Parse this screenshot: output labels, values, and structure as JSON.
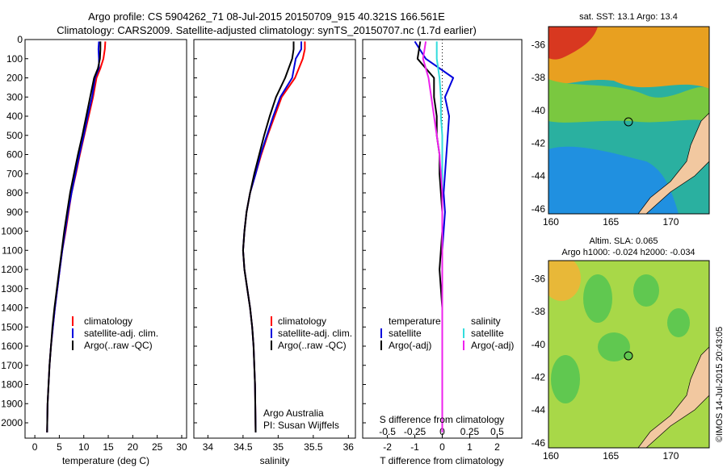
{
  "header": {
    "title_line1": "Argo profile: CS 5904262_71 08-Jul-2015 20150709_915 40.321S 166.561E",
    "title_line2": "Climatology: CARS2009. Satellite-adjusted climatology: synTS_20150707.nc (1.7d earlier)"
  },
  "colors": {
    "climatology": "#ff0000",
    "satellite": "#0000dd",
    "argo": "#000000",
    "salinity_satellite": "#33dddd",
    "salinity_argo": "#ee22ee",
    "land": "#f2c8a0"
  },
  "chart_data": [
    {
      "type": "line",
      "id": "temperature_profile",
      "xlabel": "temperature (deg C)",
      "ylabel": "",
      "xlim": [
        -2,
        31
      ],
      "ylim": [
        2080,
        0
      ],
      "xticks": [
        0,
        5,
        10,
        15,
        20,
        25,
        30
      ],
      "yticks": [
        0,
        100,
        200,
        300,
        400,
        500,
        600,
        700,
        800,
        900,
        1000,
        1100,
        1200,
        1300,
        1400,
        1500,
        1600,
        1700,
        1800,
        1900,
        2000
      ],
      "legend": [
        "climatology",
        "satellite-adj. clim.",
        "Argo(..raw -QC)"
      ],
      "legend_position": "lower-right",
      "series": [
        {
          "name": "climatology",
          "color": "#ff0000",
          "x": [
            14.4,
            14.3,
            14.0,
            13.4,
            12.6,
            11.9,
            11.0,
            10.1,
            9.2,
            8.4,
            7.5,
            6.9,
            6.3,
            5.6,
            5.1,
            4.6,
            4.1,
            3.7,
            3.3,
            3.0,
            2.8,
            2.6,
            2.5
          ],
          "y": [
            10,
            50,
            100,
            150,
            200,
            300,
            400,
            500,
            600,
            700,
            800,
            900,
            1000,
            1100,
            1200,
            1300,
            1400,
            1500,
            1600,
            1700,
            1800,
            1900,
            2050
          ]
        },
        {
          "name": "satellite-adj. clim.",
          "color": "#0000dd",
          "x": [
            13.1,
            13.0,
            13.1,
            13.1,
            12.3,
            11.7,
            10.8,
            10.0,
            9.1,
            8.3,
            7.5,
            6.8,
            6.2,
            5.6,
            5.1,
            4.6,
            4.1,
            3.7,
            3.3,
            3.0,
            2.8,
            2.6,
            2.5
          ],
          "y": [
            10,
            50,
            100,
            150,
            200,
            300,
            400,
            500,
            600,
            700,
            800,
            900,
            1000,
            1100,
            1200,
            1300,
            1400,
            1500,
            1600,
            1700,
            1800,
            1900,
            2050
          ]
        },
        {
          "name": "Argo(..raw -QC)",
          "color": "#000000",
          "x": [
            13.4,
            13.4,
            13.3,
            12.9,
            12.1,
            11.3,
            10.5,
            9.7,
            8.8,
            8.0,
            7.2,
            6.6,
            6.0,
            5.5,
            5.0,
            4.5,
            4.0,
            3.6,
            3.3,
            3.0,
            2.8,
            2.6,
            2.5
          ],
          "y": [
            10,
            50,
            100,
            150,
            200,
            300,
            400,
            500,
            600,
            700,
            800,
            900,
            1000,
            1100,
            1200,
            1300,
            1400,
            1500,
            1600,
            1700,
            1800,
            1900,
            2050
          ]
        }
      ]
    },
    {
      "type": "line",
      "id": "salinity_profile",
      "xlabel": "salinity",
      "ylabel": "",
      "xlim": [
        33.8,
        36.1
      ],
      "ylim": [
        2080,
        0
      ],
      "xticks": [
        34,
        34.5,
        35,
        35.5,
        36
      ],
      "legend": [
        "climatology",
        "satellite-adj. clim.",
        "Argo(..raw -QC)"
      ],
      "legend_position": "lower-right",
      "annotation_line1": "Argo Australia",
      "annotation_line2": "PI: Susan Wijffels",
      "series": [
        {
          "name": "climatology",
          "color": "#ff0000",
          "x": [
            35.38,
            35.38,
            35.35,
            35.24,
            35.05,
            34.95,
            34.85,
            34.76,
            34.68,
            34.6,
            34.55,
            34.52,
            34.5,
            34.52,
            34.56,
            34.6,
            34.63,
            34.65,
            34.66,
            34.67,
            34.68
          ],
          "y": [
            10,
            50,
            100,
            200,
            300,
            400,
            500,
            600,
            700,
            800,
            900,
            1000,
            1100,
            1200,
            1300,
            1400,
            1500,
            1600,
            1700,
            1800,
            2050
          ]
        },
        {
          "name": "satellite-adj. clim.",
          "color": "#0000dd",
          "x": [
            35.33,
            35.33,
            35.25,
            35.2,
            35.03,
            34.93,
            34.84,
            34.75,
            34.68,
            34.6,
            34.55,
            34.52,
            34.5,
            34.52,
            34.56,
            34.6,
            34.63,
            34.65,
            34.66,
            34.67,
            34.68
          ],
          "y": [
            10,
            50,
            100,
            200,
            300,
            400,
            500,
            600,
            700,
            800,
            900,
            1000,
            1100,
            1200,
            1300,
            1400,
            1500,
            1600,
            1700,
            1800,
            2050
          ]
        },
        {
          "name": "Argo(..raw -QC)",
          "color": "#000000",
          "x": [
            35.22,
            35.22,
            35.2,
            35.1,
            34.97,
            34.88,
            34.8,
            34.73,
            34.66,
            34.6,
            34.55,
            34.52,
            34.5,
            34.52,
            34.56,
            34.6,
            34.63,
            34.65,
            34.66,
            34.67,
            34.68
          ],
          "y": [
            10,
            50,
            100,
            200,
            300,
            400,
            500,
            600,
            700,
            800,
            900,
            1000,
            1100,
            1200,
            1300,
            1400,
            1500,
            1600,
            1700,
            1800,
            2050
          ]
        }
      ]
    },
    {
      "type": "line",
      "id": "difference_profile",
      "xlabel": "T difference from climatology",
      "x2label": "S difference from climatology",
      "xlim": [
        -2.9,
        2.9
      ],
      "ylim": [
        2080,
        0
      ],
      "xticks": [
        -2,
        -1,
        0,
        1,
        2
      ],
      "x2ticks": [
        "-0.5",
        "-0.25",
        "0",
        "0.25",
        "0.5"
      ],
      "legend_temperature_title": "temperature",
      "legend_salinity_title": "salinity",
      "legend": [
        "satellite",
        "Argo(-adj)",
        "satellite",
        "Argo(-adj)"
      ],
      "legend_position": "lower-center",
      "series": [
        {
          "name": "temperature satellite",
          "color": "#0000dd",
          "x": [
            -1.0,
            -0.6,
            0.4,
            0.1,
            0.25,
            0.2,
            0.15,
            0.1,
            0.05,
            0.1,
            0.05,
            0.0,
            0.0,
            0.0,
            0.0,
            0.0
          ],
          "y": [
            10,
            100,
            200,
            300,
            400,
            500,
            600,
            700,
            800,
            900,
            1000,
            1100,
            1200,
            1300,
            1400,
            2050
          ]
        },
        {
          "name": "temperature Argo(-adj)",
          "color": "#000000",
          "x": [
            -0.8,
            -0.9,
            -0.3,
            -0.3,
            -0.2,
            -0.2,
            -0.1,
            -0.1,
            -0.05,
            0.0,
            0.0,
            -0.05,
            -0.1,
            -0.05,
            0.0,
            0.0
          ],
          "y": [
            10,
            100,
            200,
            300,
            400,
            500,
            600,
            700,
            800,
            900,
            1000,
            1100,
            1200,
            1300,
            1400,
            2050
          ]
        },
        {
          "name": "salinity satellite",
          "color": "#33dddd",
          "x": [
            -0.2,
            -0.2,
            -0.1,
            -0.05,
            -0.05,
            0.0,
            0.0,
            0.0,
            0.0,
            0.0,
            0.0,
            0.0
          ],
          "y": [
            10,
            100,
            200,
            300,
            400,
            500,
            600,
            700,
            800,
            1000,
            1400,
            2050
          ]
        },
        {
          "name": "salinity Argo(-adj)",
          "color": "#ee22ee",
          "x": [
            -0.6,
            -0.7,
            -0.5,
            -0.4,
            -0.3,
            -0.2,
            -0.1,
            -0.05,
            0.0,
            0.0,
            0.0,
            0.0
          ],
          "y": [
            10,
            100,
            200,
            300,
            400,
            500,
            600,
            700,
            800,
            1000,
            1400,
            2050
          ]
        }
      ]
    },
    {
      "type": "heatmap",
      "id": "sst_map",
      "title": "sat. SST: 13.1 Argo: 13.4",
      "xlim": [
        159.8,
        173.2
      ],
      "ylim": [
        -46.3,
        -34.9
      ],
      "xticks": [
        160,
        165,
        170
      ],
      "yticks": [
        -36,
        -38,
        -40,
        -42,
        -44,
        -46
      ],
      "profile_location": {
        "lon": 166.561,
        "lat": -40.321
      }
    },
    {
      "type": "heatmap",
      "id": "sla_map",
      "title_line1": "Altim. SLA: 0.065",
      "title_line2": "Argo h1000: -0.024 h2000: -0.034",
      "xlim": [
        159.8,
        173.2
      ],
      "ylim": [
        -46.3,
        -34.9
      ],
      "xticks": [
        160,
        165,
        170
      ],
      "yticks": [
        -36,
        -38,
        -40,
        -42,
        -44,
        -46
      ],
      "profile_location": {
        "lon": 166.561,
        "lat": -40.321
      }
    }
  ],
  "footer": {
    "credit": "©IMOS 14-Jul-2015 20:43:05"
  }
}
